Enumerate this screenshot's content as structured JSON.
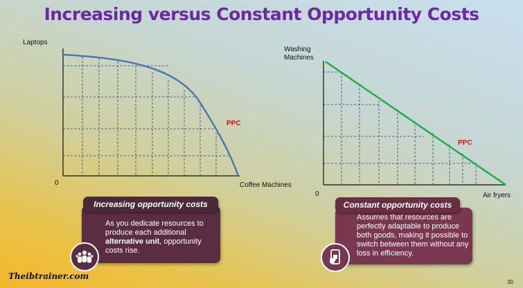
{
  "title": "Increasing versus Constant Opportunity Costs",
  "left_chart": {
    "y_label": "Laptops",
    "x_label": "Coffee Machines",
    "origin": "0",
    "curve_label": "PPC",
    "curve_color": "#4a7bb0"
  },
  "right_chart": {
    "y_label_line1": "Washing",
    "y_label_line2": "Machines",
    "x_label": "Air fryers",
    "origin": "0",
    "curve_label": "PPC",
    "curve_color": "#1bb04a"
  },
  "card_left": {
    "heading": "Increasing opportunity costs",
    "text_part1": "As you dedicate resources to produce each additional ",
    "text_bold": "alternative unit",
    "text_part2": ", opportunity costs rise.",
    "icon": "people-group-icon"
  },
  "card_right": {
    "heading": "Constant opportunity costs",
    "text": "Assumes that resources are perfectly adaptable to produce both goods, making it possible to switch between them without any loss in efficiency.",
    "icon": "phone-hand-icon"
  },
  "brand": "Theibtrainer.com",
  "page_number": "30",
  "colors": {
    "title": "#6a2aa0",
    "card_left_bg": "#5a2d42",
    "card_left_head": "#4a2a36",
    "card_right_bg": "#7a3850",
    "card_right_head": "#6a2e44"
  }
}
